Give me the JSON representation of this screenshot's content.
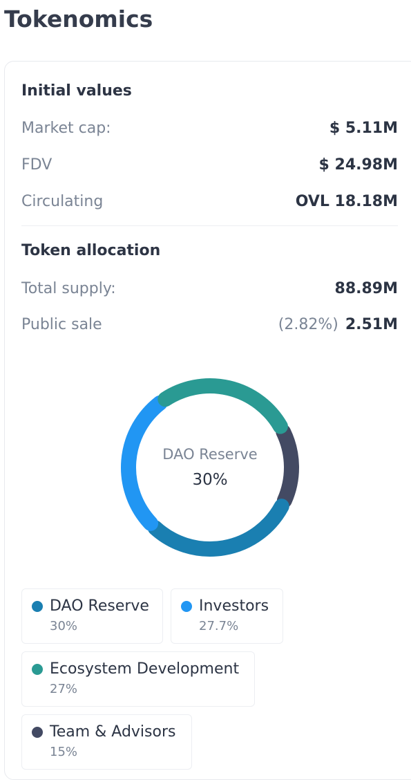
{
  "page_title": "Tokenomics",
  "initial_values": {
    "heading": "Initial values",
    "rows": [
      {
        "label": "Market cap:",
        "value": "$ 5.11M"
      },
      {
        "label": "FDV",
        "value": "$ 24.98M"
      },
      {
        "label": "Circulating",
        "value": "OVL 18.18M"
      }
    ]
  },
  "token_allocation": {
    "heading": "Token allocation",
    "total_supply": {
      "label": "Total supply:",
      "value": "88.89M"
    },
    "public_sale": {
      "label": "Public sale",
      "percent": "(2.82%)",
      "value": "2.51M"
    }
  },
  "donut": {
    "center_label": "DAO Reserve",
    "center_value": "30%"
  },
  "chart_data": {
    "type": "pie",
    "categories": [
      "DAO Reserve",
      "Investors",
      "Ecosystem Development",
      "Team & Advisors"
    ],
    "values": [
      30,
      27.7,
      27,
      15
    ],
    "colors": [
      "#1a7fb1",
      "#2196f3",
      "#2a9a93",
      "#434a63"
    ]
  },
  "legend": [
    {
      "name": "DAO Reserve",
      "percent": "30%",
      "color": "#1a7fb1"
    },
    {
      "name": "Investors",
      "percent": "27.7%",
      "color": "#2196f3"
    },
    {
      "name": "Ecosystem Development",
      "percent": "27%",
      "color": "#2a9a93"
    },
    {
      "name": "Team & Advisors",
      "percent": "15%",
      "color": "#434a63"
    }
  ]
}
